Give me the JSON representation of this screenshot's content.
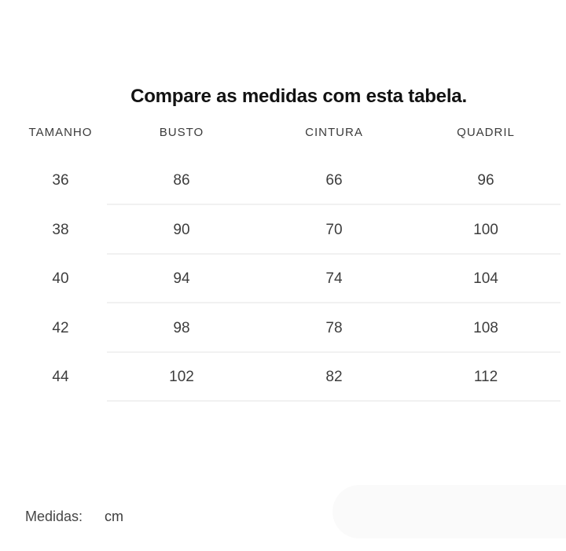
{
  "page": {
    "title": "Compare as medidas com esta tabela."
  },
  "table": {
    "columns": [
      {
        "id": "tamanho",
        "label": "TAMANHO"
      },
      {
        "id": "busto",
        "label": "BUSTO"
      },
      {
        "id": "cintura",
        "label": "CINTURA"
      },
      {
        "id": "quadril",
        "label": "QUADRIL"
      }
    ],
    "rows": [
      {
        "tamanho": "36",
        "busto": "86",
        "cintura": "66",
        "quadril": "96"
      },
      {
        "tamanho": "38",
        "busto": "90",
        "cintura": "70",
        "quadril": "100"
      },
      {
        "tamanho": "40",
        "busto": "94",
        "cintura": "74",
        "quadril": "104"
      },
      {
        "tamanho": "42",
        "busto": "98",
        "cintura": "78",
        "quadril": "108"
      },
      {
        "tamanho": "44",
        "busto": "102",
        "cintura": "82",
        "quadril": "112"
      }
    ]
  },
  "footer": {
    "label": "Medidas:",
    "unit": "cm"
  },
  "colors": {
    "background": "#ffffff",
    "title_text": "#121212",
    "body_text": "#3d3d3d",
    "divider": "#f1f1f1",
    "faded_pill": "#fafafa"
  },
  "chart_data": {
    "type": "table",
    "title": "Compare as medidas com esta tabela.",
    "columns": [
      "TAMANHO",
      "BUSTO",
      "CINTURA",
      "QUADRIL"
    ],
    "rows": [
      [
        36,
        86,
        66,
        96
      ],
      [
        38,
        90,
        70,
        100
      ],
      [
        40,
        94,
        74,
        104
      ],
      [
        42,
        98,
        78,
        108
      ],
      [
        44,
        102,
        82,
        112
      ]
    ],
    "unit": "cm",
    "notes": "Clothing size chart; measurements in centimeters; light gray row separators; no vertical gridlines"
  }
}
